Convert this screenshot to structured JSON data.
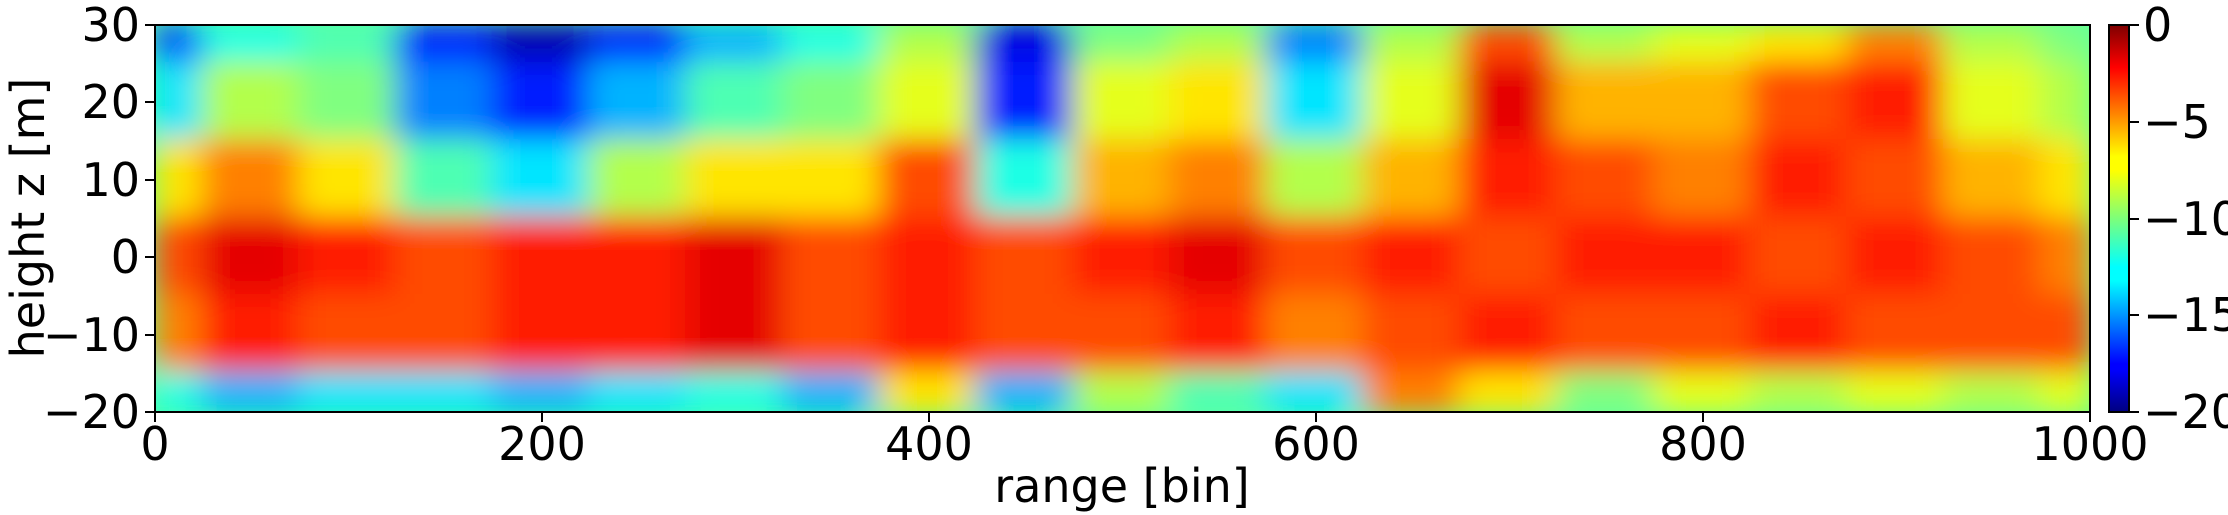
{
  "chart_data": {
    "type": "heatmap",
    "title": "",
    "xlabel": "range [bin]",
    "ylabel": "height z [m]",
    "xlim": [
      0,
      1000
    ],
    "ylim": [
      -20,
      30
    ],
    "xticks": [
      0,
      200,
      400,
      600,
      800,
      1000
    ],
    "yticks": [
      -20,
      -10,
      0,
      10,
      20,
      30
    ],
    "colormap": "jet",
    "colorbar": {
      "range": [
        -20,
        0
      ],
      "ticks": [
        0,
        -5,
        -10,
        -15,
        -20
      ],
      "tick_labels": [
        "0",
        "−5",
        "−10",
        "−15",
        "−20"
      ]
    },
    "ytick_labels": [
      "30",
      "20",
      "10",
      "0",
      "−10",
      "−20"
    ],
    "xtick_labels": [
      "0",
      "200",
      "400",
      "600",
      "800",
      "1000"
    ],
    "field": {
      "x": [
        0,
        50,
        100,
        150,
        200,
        250,
        300,
        350,
        400,
        450,
        500,
        550,
        600,
        650,
        700,
        750,
        800,
        850,
        900,
        950,
        1000
      ],
      "z": [
        30,
        20,
        10,
        0,
        -10,
        -20
      ],
      "values_db": [
        [
          -16,
          -12,
          -11,
          -17,
          -19,
          -17,
          -14,
          -12,
          -9,
          -18,
          -10,
          -9,
          -15,
          -9,
          -4,
          -9,
          -8,
          -7,
          -5,
          -9,
          -10
        ],
        [
          -13,
          -9,
          -10,
          -15,
          -17,
          -14,
          -11,
          -10,
          -8,
          -17,
          -8,
          -7,
          -13,
          -8,
          -2,
          -6,
          -6,
          -4,
          -3,
          -8,
          -9
        ],
        [
          -7,
          -5,
          -7,
          -11,
          -13,
          -9,
          -7,
          -7,
          -4,
          -12,
          -6,
          -5,
          -9,
          -6,
          -3,
          -4,
          -5,
          -3,
          -4,
          -6,
          -7
        ],
        [
          -4,
          -2,
          -3,
          -4,
          -3,
          -3,
          -2,
          -4,
          -3,
          -4,
          -3,
          -2,
          -4,
          -3,
          -4,
          -3,
          -3,
          -4,
          -3,
          -4,
          -5
        ],
        [
          -5,
          -3,
          -4,
          -4,
          -3,
          -3,
          -2,
          -4,
          -3,
          -4,
          -4,
          -3,
          -5,
          -4,
          -3,
          -4,
          -4,
          -3,
          -4,
          -4,
          -4
        ],
        [
          -12,
          -14,
          -13,
          -13,
          -14,
          -13,
          -12,
          -14,
          -7,
          -14,
          -9,
          -11,
          -13,
          -5,
          -7,
          -10,
          -8,
          -9,
          -8,
          -9,
          -8
        ]
      ]
    }
  }
}
